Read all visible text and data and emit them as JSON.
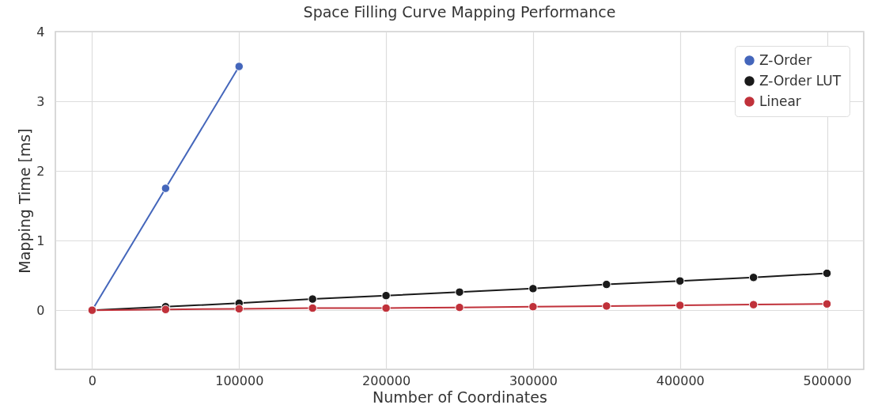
{
  "chart_data": {
    "type": "line",
    "title": "Space Filling Curve Mapping Performance",
    "xlabel": "Number of Coordinates",
    "ylabel": "Mapping Time [ms]",
    "x": [
      0,
      50000,
      100000,
      150000,
      200000,
      250000,
      300000,
      350000,
      400000,
      450000,
      500000
    ],
    "series": [
      {
        "name": "Z-Order",
        "color": "#4466bb",
        "x": [
          0,
          50000,
          100000
        ],
        "values": [
          0,
          1.75,
          3.5
        ]
      },
      {
        "name": "Z-Order LUT",
        "color": "#1a1a1a",
        "values": [
          0,
          0.05,
          0.1,
          0.16,
          0.21,
          0.26,
          0.31,
          0.37,
          0.42,
          0.47,
          0.53
        ]
      },
      {
        "name": "Linear",
        "color": "#c0313a",
        "values": [
          0,
          0.01,
          0.02,
          0.03,
          0.03,
          0.04,
          0.05,
          0.06,
          0.07,
          0.08,
          0.09
        ]
      }
    ],
    "xlim": [
      -25000,
      525000
    ],
    "xticks": [
      0,
      100000,
      200000,
      300000,
      400000,
      500000
    ],
    "ylim": [
      -0.85,
      4
    ],
    "yticks": [
      0,
      1,
      2,
      3,
      4
    ],
    "grid": true,
    "legend": "top right",
    "marker": "circle",
    "line_style": "solid"
  }
}
